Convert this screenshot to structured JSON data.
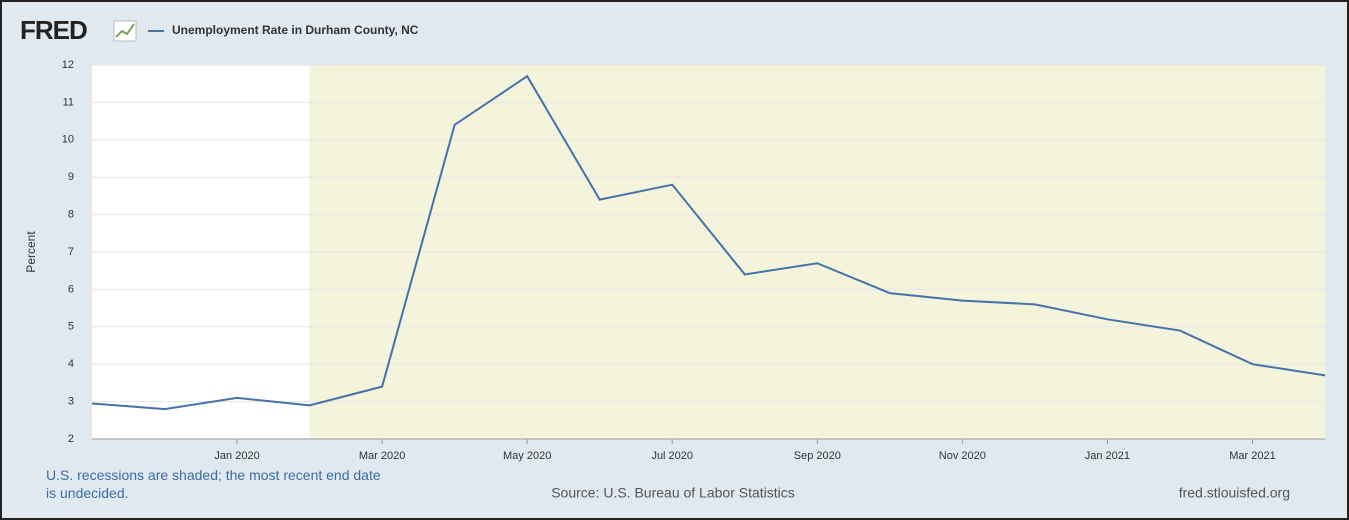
{
  "chart_data": {
    "type": "line",
    "logo": "FRED",
    "title": "Unemployment Rate in Durham County, NC",
    "y_label": "Percent",
    "note": "U.S. recessions are shaded; the most recent end date is undecided.",
    "source": "Source: U.S. Bureau of Labor Statistics",
    "site": "fred.stlouisfed.org",
    "x": [
      "2019-11",
      "2019-12",
      "2020-01",
      "2020-02",
      "2020-03",
      "2020-04",
      "2020-05",
      "2020-06",
      "2020-07",
      "2020-08",
      "2020-09",
      "2020-10",
      "2020-11",
      "2020-12",
      "2021-01",
      "2021-02",
      "2021-03",
      "2021-04"
    ],
    "series": [
      {
        "name": "Unemployment Rate in Durham County, NC",
        "color": "#4572a7",
        "values": [
          2.95,
          2.8,
          3.1,
          2.9,
          3.4,
          10.4,
          11.7,
          8.4,
          8.8,
          6.4,
          6.7,
          5.9,
          5.7,
          5.6,
          5.2,
          4.9,
          4.0,
          3.7
        ]
      }
    ],
    "xlim": [
      "2019-11",
      "2021-04"
    ],
    "xticks": [
      {
        "value": "2020-01",
        "label": "Jan 2020"
      },
      {
        "value": "2020-03",
        "label": "Mar 2020"
      },
      {
        "value": "2020-05",
        "label": "May 2020"
      },
      {
        "value": "2020-07",
        "label": "Jul 2020"
      },
      {
        "value": "2020-09",
        "label": "Sep 2020"
      },
      {
        "value": "2020-11",
        "label": "Nov 2020"
      },
      {
        "value": "2021-01",
        "label": "Jan 2021"
      },
      {
        "value": "2021-03",
        "label": "Mar 2021"
      }
    ],
    "ylim": [
      2,
      12
    ],
    "yticks": [
      2,
      3,
      4,
      5,
      6,
      7,
      8,
      9,
      10,
      11,
      12
    ],
    "grid": true,
    "recession_start": "2020-02",
    "recession_color": "#f4f3dc"
  }
}
